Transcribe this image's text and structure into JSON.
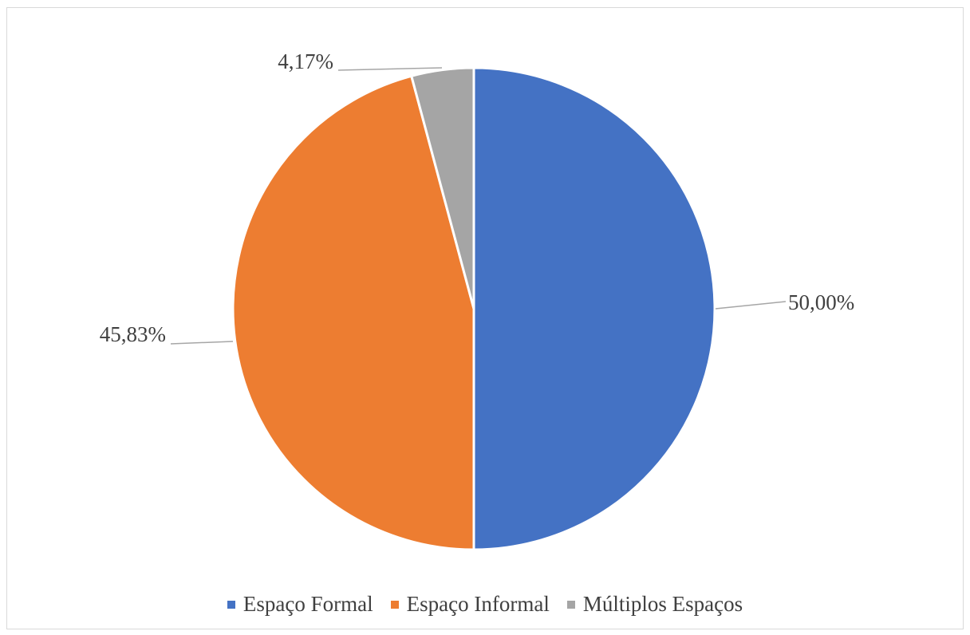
{
  "chart_data": {
    "type": "pie",
    "title": "",
    "slices": [
      {
        "name": "Espaço Formal",
        "value": 50.0,
        "label": "50,00%",
        "color": "#4472C4"
      },
      {
        "name": "Espaço Informal",
        "value": 45.83,
        "label": "45,83%",
        "color": "#ED7D31"
      },
      {
        "name": "Múltiplos Espaços",
        "value": 4.17,
        "label": "4,17%",
        "color": "#A5A5A5"
      }
    ],
    "start_angle_deg": 0,
    "direction": "clockwise",
    "legend_position": "bottom",
    "label_position": "outside-with-leader-lines"
  },
  "legend": {
    "items": [
      {
        "label": "Espaço Formal",
        "color": "#4472C4"
      },
      {
        "label": "Espaço Informal",
        "color": "#ED7D31"
      },
      {
        "label": "Múltiplos Espaços",
        "color": "#A5A5A5"
      }
    ]
  }
}
